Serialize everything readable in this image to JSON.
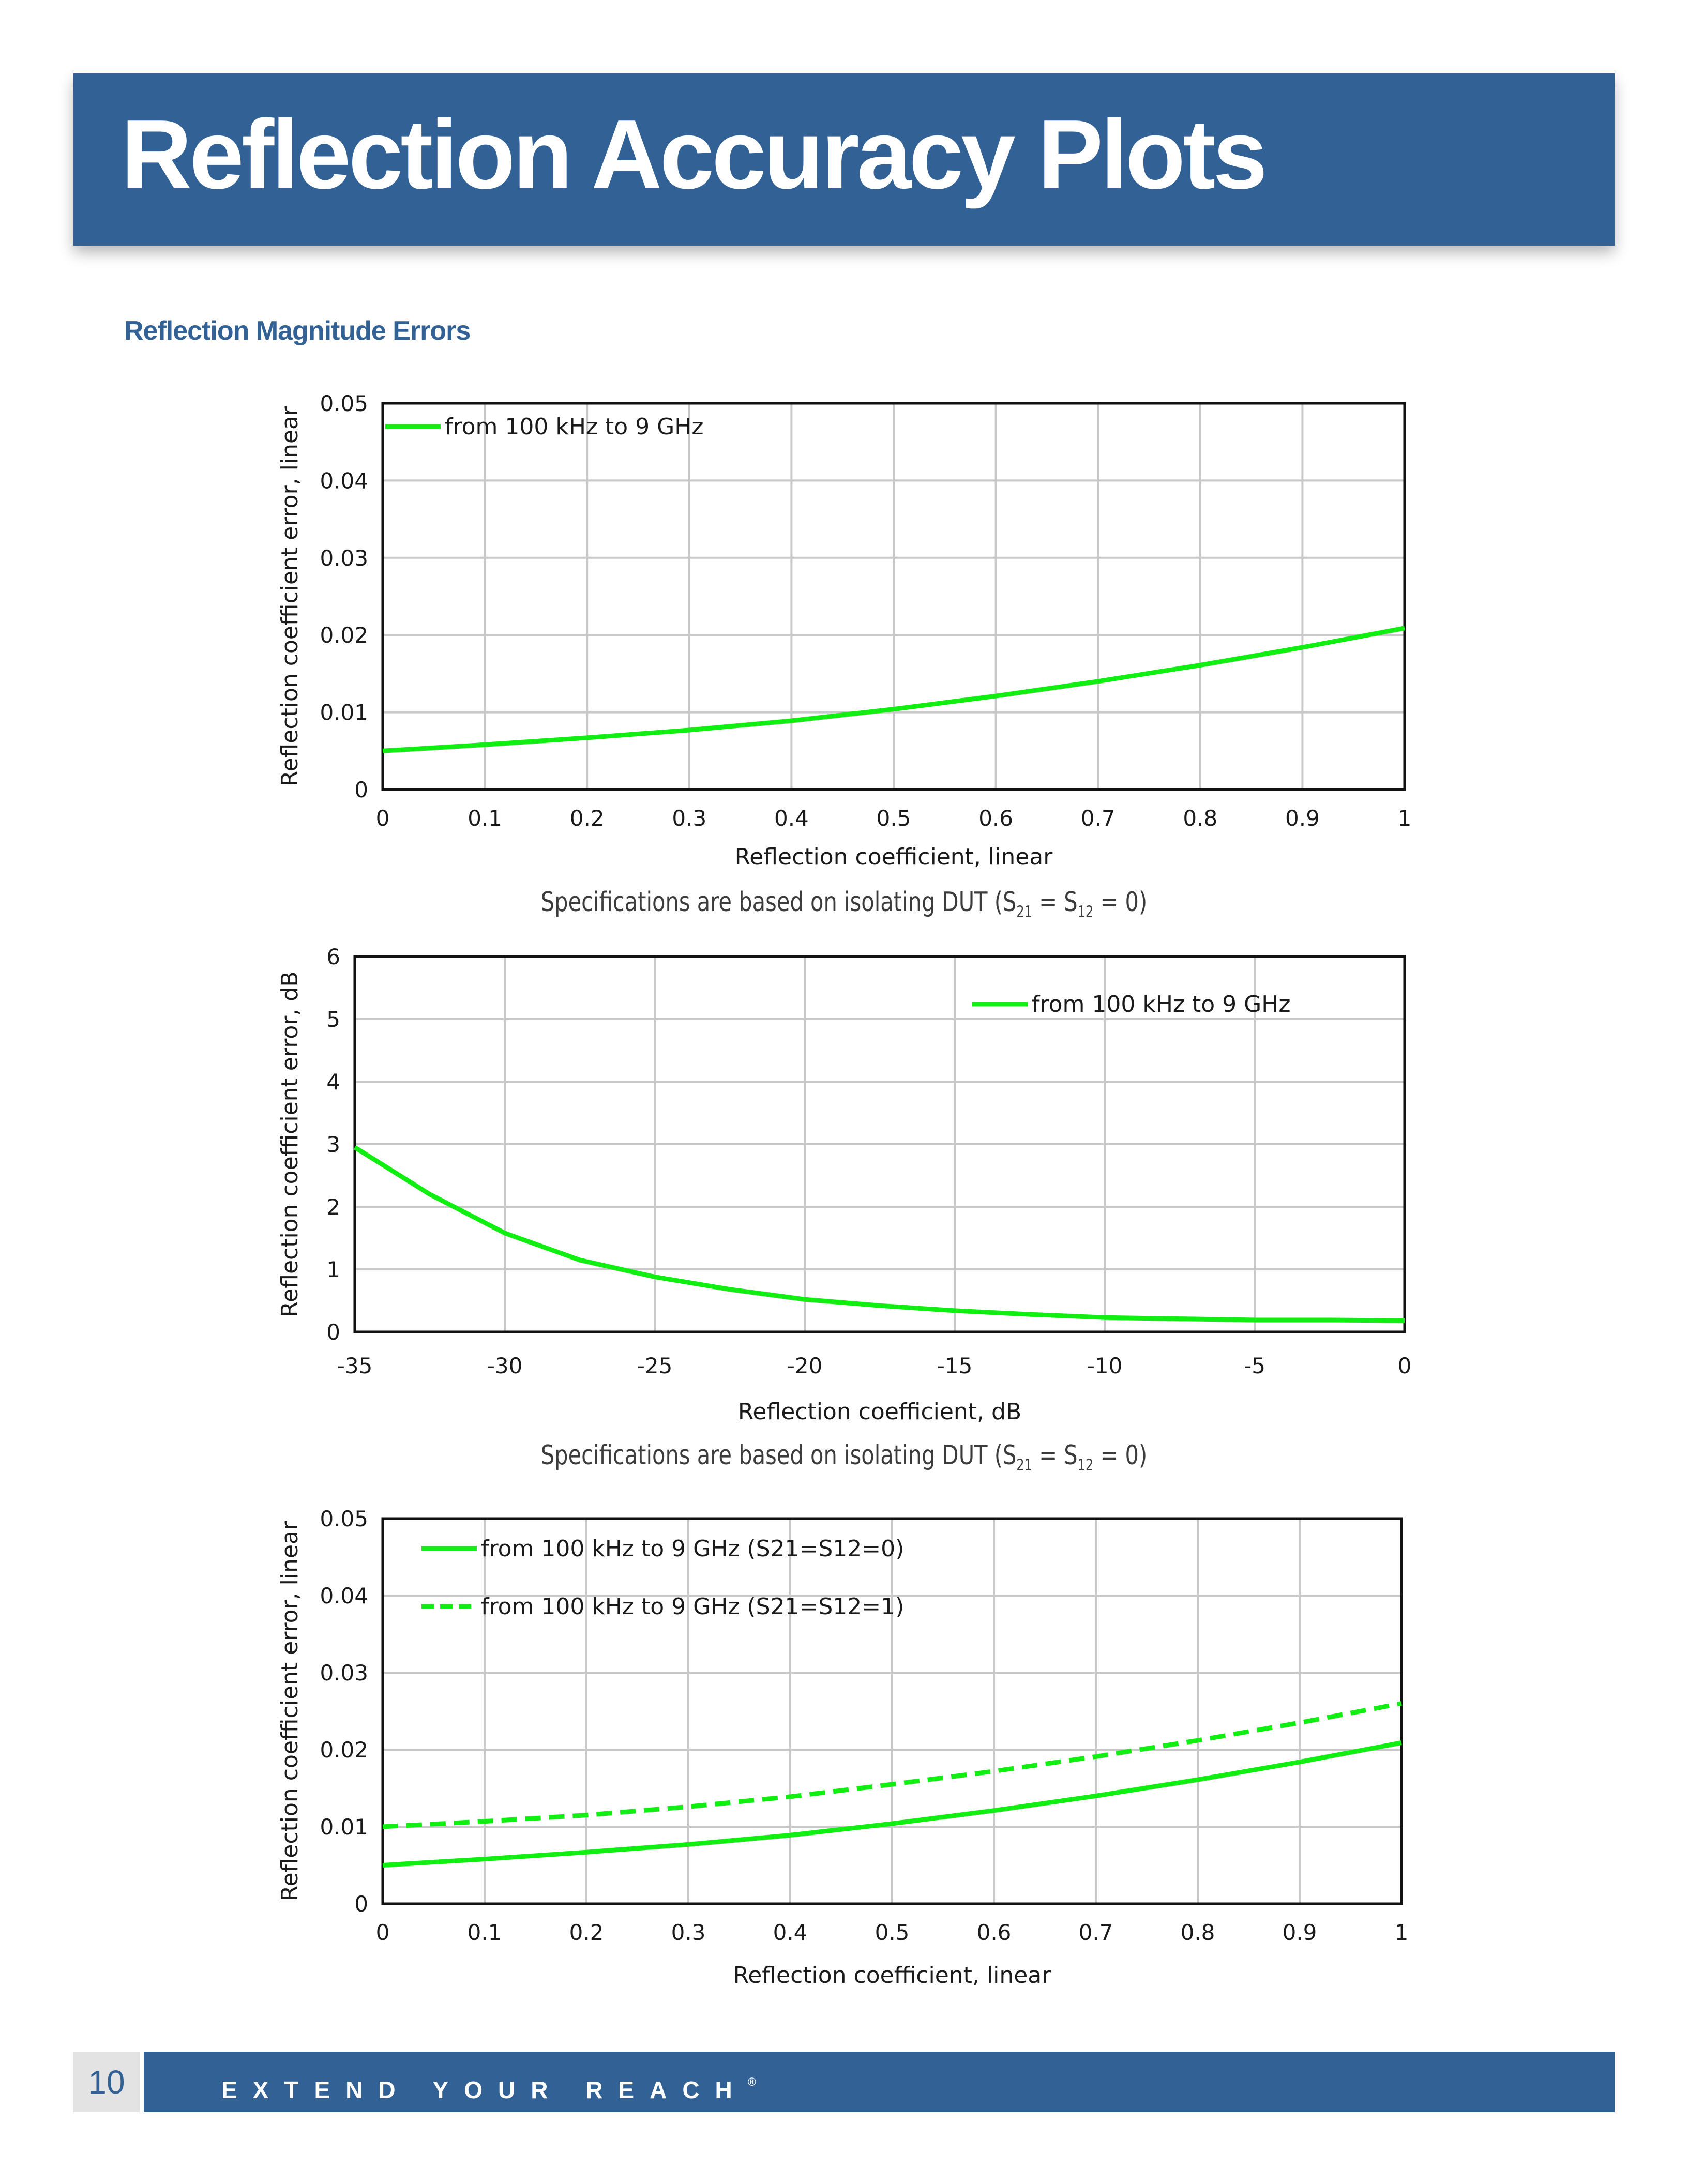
{
  "page": {
    "title": "Reflection Accuracy Plots",
    "section_heading": "Reflection Magnitude Errors",
    "footer": {
      "page_number": "10",
      "slogan": "EXTEND YOUR REACH",
      "trademark": "®"
    },
    "captions": [
      {
        "text": "Specifications are based on isolating DUT (S",
        "sub1": "21",
        "mid": " = S",
        "sub2": "12",
        "end": " = 0)"
      },
      {
        "text": "Specifications are based on isolating DUT (S",
        "sub1": "21",
        "mid": " = S",
        "sub2": "12",
        "end": " = 0)"
      }
    ],
    "colors": {
      "banner": "#326195",
      "heading": "#326195",
      "series": "#11ee11",
      "grid": "#c8c8c8",
      "footer_number_bg": "#e3e3e3"
    }
  },
  "chart_data": [
    {
      "type": "line",
      "xlabel": "Reflection coefficient, linear",
      "ylabel": "Reflection coefficient error, linear",
      "xlim": [
        0,
        1
      ],
      "ylim": [
        0,
        0.05
      ],
      "xticks": [
        0,
        0.1,
        0.2,
        0.3,
        0.4,
        0.5,
        0.6,
        0.7,
        0.8,
        0.9,
        1
      ],
      "xtick_labels": [
        "0",
        "0.1",
        "0.2",
        "0.3",
        "0.4",
        "0.5",
        "0.6",
        "0.7",
        "0.8",
        "0.9",
        "1"
      ],
      "yticks": [
        0,
        0.01,
        0.02,
        0.03,
        0.04,
        0.05
      ],
      "ytick_labels": [
        "0",
        "0.01",
        "0.02",
        "0.03",
        "0.04",
        "0.05"
      ],
      "grid": true,
      "legend_position": "top-left",
      "series": [
        {
          "name": "from 100 kHz to 9 GHz",
          "style": "solid",
          "x": [
            0,
            0.1,
            0.2,
            0.3,
            0.4,
            0.5,
            0.6,
            0.7,
            0.8,
            0.9,
            1
          ],
          "y": [
            0.005,
            0.0058,
            0.0067,
            0.0077,
            0.0089,
            0.0104,
            0.0121,
            0.014,
            0.0161,
            0.0184,
            0.0209
          ]
        }
      ]
    },
    {
      "type": "line",
      "xlabel": "Reflection coefficient, dB",
      "ylabel": "Reflection coefficient error, dB",
      "xlim": [
        -35,
        0
      ],
      "ylim": [
        0,
        6
      ],
      "xticks": [
        -35,
        -30,
        -25,
        -20,
        -15,
        -10,
        -5,
        0
      ],
      "xtick_labels": [
        "-35",
        "-30",
        "-25",
        "-20",
        "-15",
        "-10",
        "-5",
        "0"
      ],
      "yticks": [
        0,
        1,
        2,
        3,
        4,
        5,
        6
      ],
      "ytick_labels": [
        "0",
        "1",
        "2",
        "3",
        "4",
        "5",
        "6"
      ],
      "grid": true,
      "legend_position": "top-right",
      "series": [
        {
          "name": "from 100 kHz to 9 GHz",
          "style": "solid",
          "x": [
            -35,
            -32.5,
            -30,
            -27.5,
            -25,
            -22.5,
            -20,
            -17.5,
            -15,
            -12.5,
            -10,
            -7.5,
            -5,
            -2.5,
            0
          ],
          "y": [
            2.95,
            2.2,
            1.58,
            1.15,
            0.88,
            0.68,
            0.52,
            0.42,
            0.34,
            0.28,
            0.23,
            0.21,
            0.19,
            0.19,
            0.18
          ]
        }
      ]
    },
    {
      "type": "line",
      "xlabel": "Reflection coefficient, linear",
      "ylabel": "Reflection coefficient error, linear",
      "xlim": [
        0,
        1
      ],
      "ylim": [
        0,
        0.05
      ],
      "xticks": [
        0,
        0.1,
        0.2,
        0.3,
        0.4,
        0.5,
        0.6,
        0.7,
        0.8,
        0.9,
        1
      ],
      "xtick_labels": [
        "0",
        "0.1",
        "0.2",
        "0.3",
        "0.4",
        "0.5",
        "0.6",
        "0.7",
        "0.8",
        "0.9",
        "1"
      ],
      "yticks": [
        0,
        0.01,
        0.02,
        0.03,
        0.04,
        0.05
      ],
      "ytick_labels": [
        "0",
        "0.01",
        "0.02",
        "0.03",
        "0.04",
        "0.05"
      ],
      "grid": true,
      "legend_position": "top-left",
      "series": [
        {
          "name": "from 100 kHz to 9 GHz (S21=S12=0)",
          "style": "solid",
          "x": [
            0,
            0.1,
            0.2,
            0.3,
            0.4,
            0.5,
            0.6,
            0.7,
            0.8,
            0.9,
            1
          ],
          "y": [
            0.005,
            0.0058,
            0.0067,
            0.0077,
            0.0089,
            0.0104,
            0.0121,
            0.014,
            0.0161,
            0.0184,
            0.0209
          ]
        },
        {
          "name": "from 100 kHz to 9 GHz (S21=S12=1)",
          "style": "dashed",
          "x": [
            0,
            0.1,
            0.2,
            0.3,
            0.4,
            0.5,
            0.6,
            0.7,
            0.8,
            0.9,
            1
          ],
          "y": [
            0.01,
            0.0107,
            0.0115,
            0.0126,
            0.0139,
            0.0155,
            0.0172,
            0.0191,
            0.0212,
            0.0235,
            0.026
          ]
        }
      ]
    }
  ]
}
